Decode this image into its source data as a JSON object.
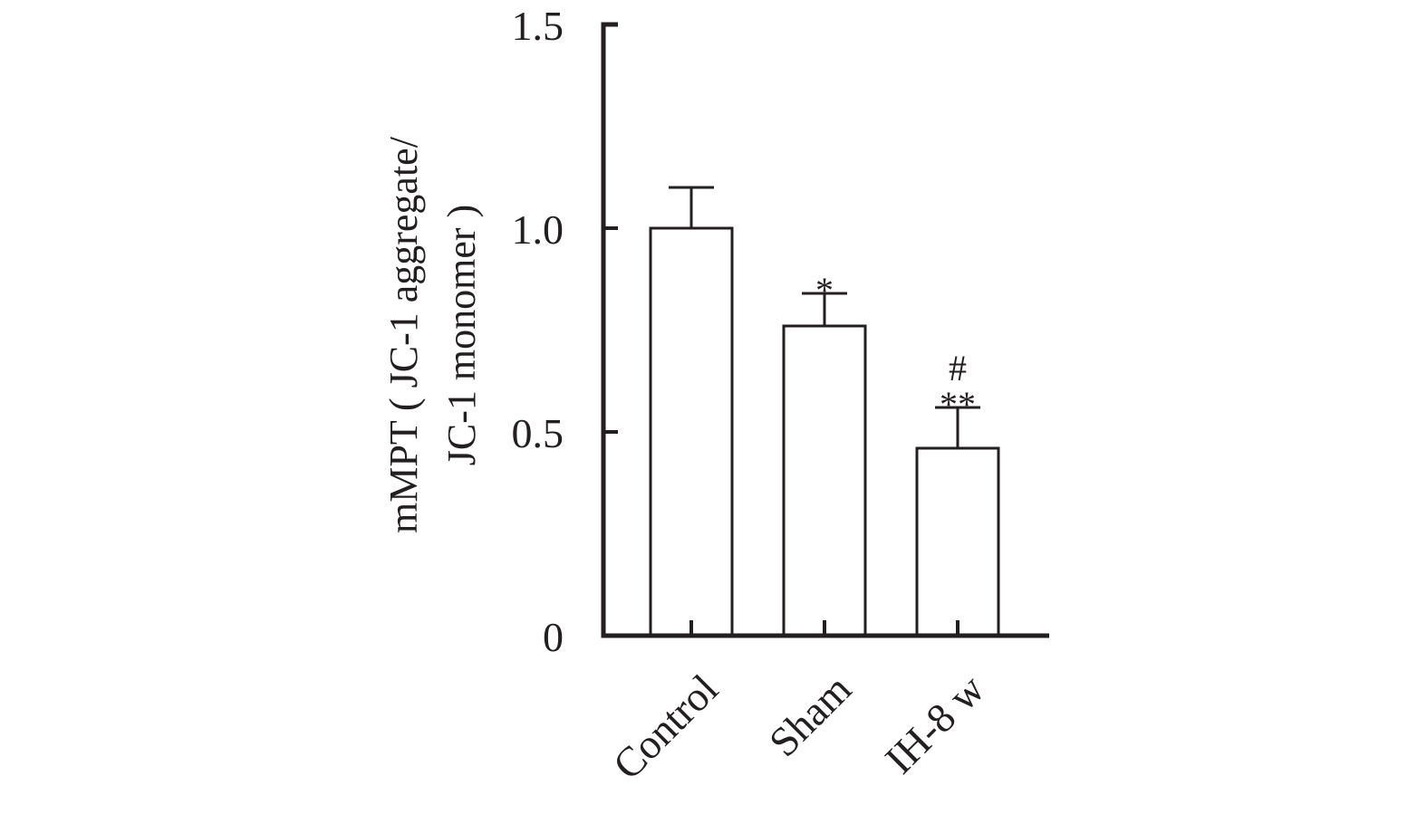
{
  "chart_data": {
    "type": "bar",
    "title": "",
    "xlabel": "",
    "ylabel_lines": [
      "mMPT ( JC-1 aggregate/",
      "JC-1 monomer )"
    ],
    "categories": [
      "Control",
      "Sham",
      "IH-8 w"
    ],
    "values": [
      1.0,
      0.76,
      0.46
    ],
    "error_upper": [
      1.1,
      0.84,
      0.56
    ],
    "annotations": [
      {
        "category": "Control",
        "lines": []
      },
      {
        "category": "Sham",
        "lines": [
          "*"
        ]
      },
      {
        "category": "IH-8 w",
        "lines": [
          "#",
          "**"
        ]
      }
    ],
    "yticks": [
      0,
      0.5,
      1.0,
      1.5
    ],
    "ytick_labels": [
      "0",
      "0.5",
      "1.0",
      "1.5"
    ],
    "ylim": [
      0,
      1.5
    ],
    "grid": false,
    "legend": "none",
    "colors": {
      "bar_fill": "#ffffff",
      "stroke": "#231f20"
    }
  }
}
